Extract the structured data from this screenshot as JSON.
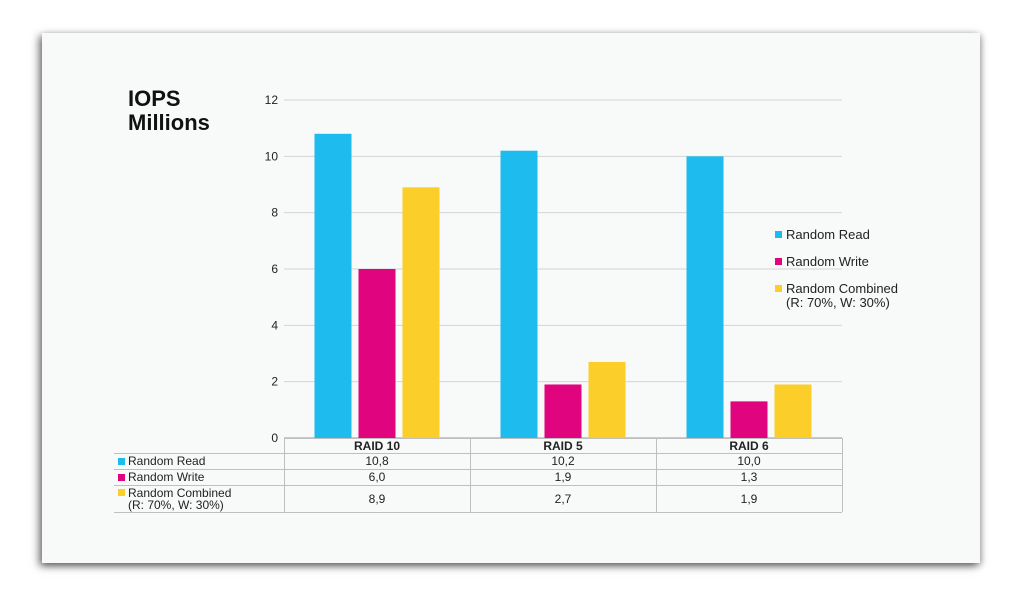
{
  "chart_data": {
    "type": "bar",
    "title": "IOPS\nMillions",
    "title_lines": [
      "IOPS",
      "Millions"
    ],
    "categories": [
      "RAID 10",
      "RAID 5",
      "RAID 6"
    ],
    "ylim": [
      0,
      12
    ],
    "yticks": [
      "0",
      "2",
      "4",
      "6",
      "8",
      "10",
      "12"
    ],
    "grid": true,
    "legend_position": "right",
    "series": [
      {
        "name": "Random Read",
        "color": "#1ebcee",
        "values": [
          10.8,
          10.2,
          10.0
        ],
        "labels": [
          "10,8",
          "10,2",
          "10,0"
        ]
      },
      {
        "name": "Random Write",
        "color": "#e0047f",
        "values": [
          6.0,
          1.9,
          1.3
        ],
        "labels": [
          "6,0",
          "1,9",
          "1,3"
        ]
      },
      {
        "name": "Random Combined\n(R: 70%, W: 30%)",
        "color": "#fcce2a",
        "values": [
          8.9,
          2.7,
          1.9
        ],
        "labels": [
          "8,9",
          "2,7",
          "1,9"
        ]
      }
    ]
  }
}
